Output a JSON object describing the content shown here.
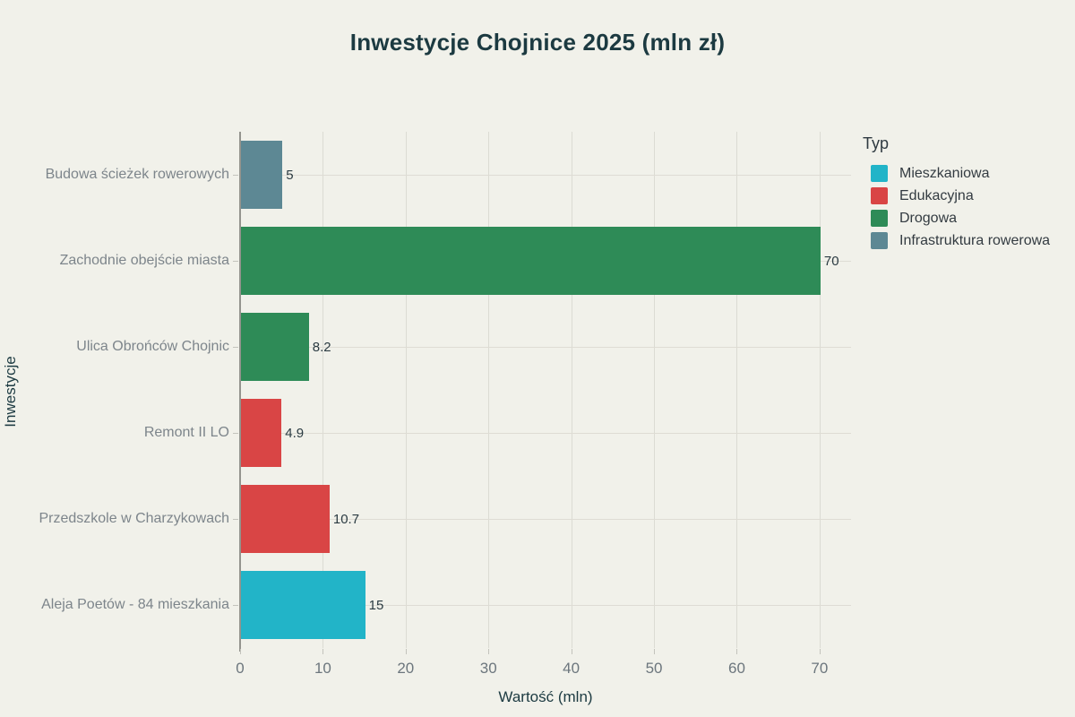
{
  "chart_data": {
    "type": "bar",
    "orientation": "horizontal",
    "title": "Inwestycje Chojnice 2025 (mln zł)",
    "xlabel": "Wartość (mln)",
    "ylabel": "Inwestycje",
    "xlim": [
      0,
      73.8
    ],
    "xticks": [
      0,
      10,
      20,
      30,
      40,
      50,
      60,
      70
    ],
    "grid": true,
    "legend_position": "right",
    "categories": [
      "Budowa ścieżek rowerowych",
      "Zachodnie obejście miasta",
      "Ulica Obrońców Chojnic",
      "Remont II LO",
      "Przedszkole w Charzykowach",
      "Aleja Poetów - 84 mieszkania"
    ],
    "values": [
      5,
      70,
      8.2,
      4.9,
      10.7,
      15
    ],
    "value_labels": [
      "5",
      "70",
      "8.2",
      "4.9",
      "10.7",
      "15"
    ],
    "bar_types": [
      "Infrastruktura rowerowa",
      "Drogowa",
      "Drogowa",
      "Edukacyjna",
      "Edukacyjna",
      "Mieszkaniowa"
    ],
    "legend": {
      "title": "Typ",
      "items": [
        {
          "label": "Mieszkaniowa",
          "color": "#22b4c8"
        },
        {
          "label": "Edukacyjna",
          "color": "#d94545"
        },
        {
          "label": "Drogowa",
          "color": "#2e8b57"
        },
        {
          "label": "Infrastruktura rowerowa",
          "color": "#5d8894"
        }
      ]
    },
    "colors": {
      "background": "#f1f1ea",
      "title_text": "#1c3a41",
      "category_text": "#7d858b",
      "tick_text": "#6c767d",
      "value_text": "#2b3b42",
      "gridline": "#dbdbd3",
      "axis_line": "#94948e"
    }
  }
}
